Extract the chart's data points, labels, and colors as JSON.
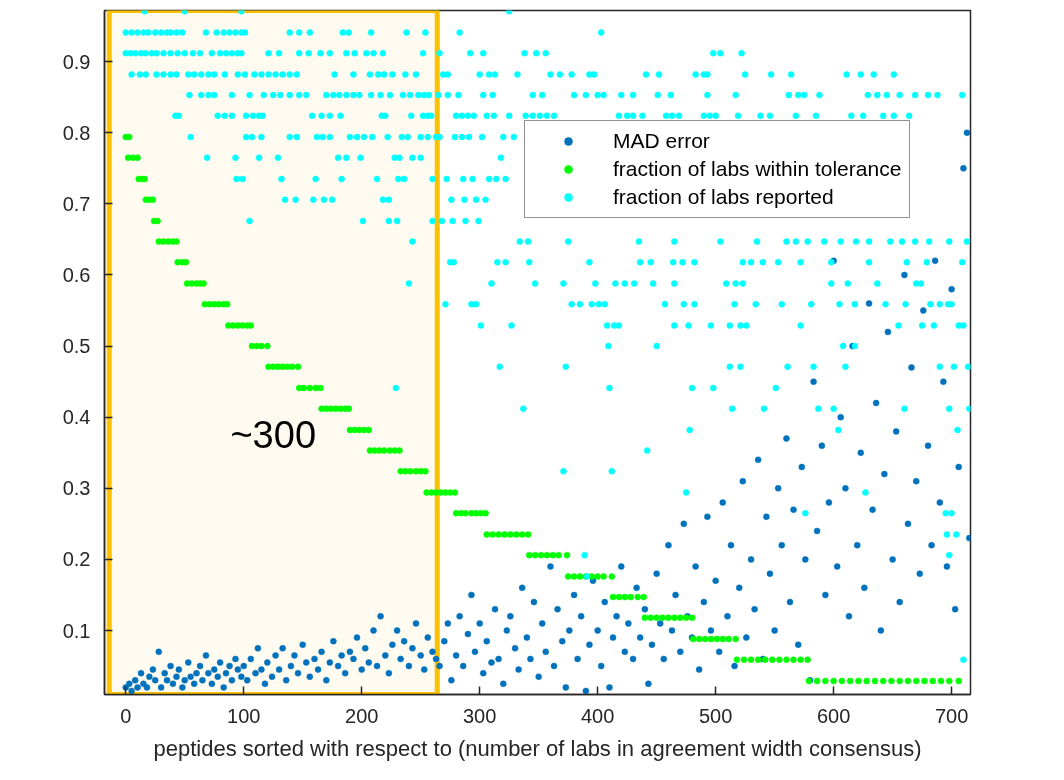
{
  "chart_data": {
    "type": "scatter",
    "xlabel": "peptides sorted with respect to (number of labs in agreement width consensus)",
    "xlim": [
      -18,
      716
    ],
    "ylim": [
      0.01,
      0.972
    ],
    "xticks": [
      0,
      100,
      200,
      300,
      400,
      500,
      600,
      700
    ],
    "yticks": [
      0.1,
      0.2,
      0.3,
      0.4,
      0.5,
      0.6,
      0.7,
      0.8,
      0.9
    ],
    "grid": false,
    "legend": "top right",
    "marker": "circle",
    "bands": [
      {
        "axis": "x",
        "from": -14,
        "to": 264,
        "label": "~300",
        "color": "#ffc000"
      }
    ],
    "series": [
      {
        "name": "MAD error",
        "color": "#0072bd",
        "x": [
          0,
          3,
          5,
          8,
          10,
          13,
          15,
          18,
          20,
          23,
          25,
          28,
          30,
          33,
          35,
          38,
          40,
          43,
          45,
          48,
          50,
          53,
          55,
          58,
          60,
          63,
          65,
          68,
          70,
          73,
          75,
          78,
          80,
          83,
          85,
          88,
          90,
          93,
          95,
          98,
          100,
          103,
          106,
          110,
          112,
          115,
          118,
          120,
          124,
          127,
          130,
          133,
          136,
          140,
          143,
          146,
          150,
          153,
          156,
          160,
          163,
          166,
          170,
          173,
          176,
          180,
          183,
          186,
          190,
          193,
          196,
          200,
          203,
          206,
          210,
          213,
          216,
          220,
          223,
          226,
          230,
          233,
          236,
          240,
          243,
          246,
          250,
          253,
          256,
          260,
          263,
          266,
          270,
          273,
          276,
          280,
          283,
          286,
          290,
          293,
          296,
          300,
          303,
          306,
          310,
          313,
          316,
          320,
          323,
          326,
          330,
          333,
          336,
          340,
          343,
          346,
          350,
          353,
          356,
          360,
          363,
          366,
          370,
          373,
          376,
          380,
          383,
          386,
          390,
          393,
          396,
          400,
          403,
          406,
          410,
          413,
          416,
          420,
          423,
          426,
          430,
          433,
          436,
          440,
          443,
          446,
          450,
          453,
          456,
          460,
          463,
          466,
          470,
          473,
          476,
          480,
          483,
          486,
          490,
          493,
          496,
          500,
          503,
          506,
          510,
          513,
          516,
          520,
          523,
          526,
          530,
          533,
          536,
          540,
          543,
          546,
          550,
          553,
          556,
          560,
          563,
          566,
          570,
          573,
          576,
          580,
          583,
          586,
          590,
          593,
          596,
          600,
          603,
          606,
          610,
          613,
          616,
          620,
          623,
          626,
          630,
          633,
          636,
          640,
          643,
          646,
          650,
          653,
          656,
          660,
          663,
          666,
          670,
          673,
          676,
          680,
          683,
          686,
          690,
          693,
          696,
          700,
          703,
          706,
          710,
          713,
          715
        ],
        "values": [
          0.02,
          0.025,
          0.015,
          0.03,
          0.02,
          0.04,
          0.025,
          0.02,
          0.035,
          0.045,
          0.03,
          0.07,
          0.02,
          0.04,
          0.03,
          0.05,
          0.025,
          0.035,
          0.045,
          0.02,
          0.03,
          0.055,
          0.035,
          0.025,
          0.04,
          0.05,
          0.03,
          0.065,
          0.04,
          0.025,
          0.045,
          0.035,
          0.055,
          0.02,
          0.04,
          0.05,
          0.03,
          0.06,
          0.045,
          0.035,
          0.05,
          0.03,
          0.06,
          0.04,
          0.075,
          0.045,
          0.025,
          0.055,
          0.035,
          0.065,
          0.045,
          0.075,
          0.03,
          0.05,
          0.065,
          0.04,
          0.08,
          0.055,
          0.035,
          0.06,
          0.045,
          0.07,
          0.03,
          0.055,
          0.085,
          0.05,
          0.065,
          0.04,
          0.07,
          0.06,
          0.09,
          0.045,
          0.075,
          0.055,
          0.1,
          0.05,
          0.12,
          0.065,
          0.04,
          0.08,
          0.1,
          0.06,
          0.085,
          0.05,
          0.075,
          0.11,
          0.065,
          0.045,
          0.09,
          0.07,
          0.06,
          0.05,
          0.085,
          0.11,
          0.03,
          0.065,
          0.12,
          0.05,
          0.095,
          0.15,
          0.07,
          0.11,
          0.04,
          0.085,
          0.055,
          0.13,
          0.06,
          0.025,
          0.1,
          0.12,
          0.075,
          0.045,
          0.16,
          0.09,
          0.06,
          0.14,
          0.035,
          0.11,
          0.07,
          0.19,
          0.05,
          0.13,
          0.085,
          0.02,
          0.1,
          0.15,
          0.06,
          0.12,
          0.015,
          0.08,
          0.17,
          0.1,
          0.05,
          0.14,
          0.02,
          0.09,
          0.12,
          0.19,
          0.07,
          0.11,
          0.06,
          0.16,
          0.09,
          0.13,
          0.025,
          0.08,
          0.18,
          0.11,
          0.06,
          0.22,
          0.1,
          0.15,
          0.07,
          0.25,
          0.12,
          0.09,
          0.19,
          0.045,
          0.14,
          0.26,
          0.1,
          0.17,
          0.07,
          0.28,
          0.12,
          0.22,
          0.05,
          0.16,
          0.31,
          0.09,
          0.2,
          0.13,
          0.34,
          0.06,
          0.26,
          0.18,
          0.1,
          0.3,
          0.22,
          0.37,
          0.14,
          0.27,
          0.08,
          0.33,
          0.2,
          0.03,
          0.45,
          0.24,
          0.36,
          0.15,
          0.28,
          0.62,
          0.19,
          0.4,
          0.3,
          0.12,
          0.5,
          0.22,
          0.35,
          0.16,
          0.56,
          0.27,
          0.42,
          0.1,
          0.32,
          0.52,
          0.2,
          0.38,
          0.14,
          0.6,
          0.25,
          0.47,
          0.31,
          0.18,
          0.55,
          0.36,
          0.22,
          0.62,
          0.28,
          0.45,
          0.19,
          0.58,
          0.13,
          0.33,
          0.75,
          0.8,
          0.23
        ]
      },
      {
        "name": "fraction of labs within tolerance",
        "color": "#00ff00",
        "x": [
          0,
          3,
          2,
          6,
          10,
          11,
          14,
          16,
          17,
          20,
          23,
          24,
          27,
          28,
          32,
          36,
          40,
          43,
          44,
          48,
          51,
          52,
          56,
          60,
          63,
          66,
          67,
          71,
          75,
          79,
          83,
          86,
          87,
          91,
          95,
          99,
          103,
          106,
          107,
          111,
          115,
          120,
          121,
          125,
          129,
          133,
          137,
          141,
          146,
          147,
          151,
          156,
          161,
          165,
          166,
          170,
          174,
          178,
          182,
          186,
          189,
          190,
          194,
          198,
          202,
          206,
          207,
          211,
          215,
          219,
          224,
          228,
          232,
          233,
          237,
          241,
          246,
          250,
          254,
          255,
          259,
          263,
          267,
          271,
          275,
          279,
          280,
          284,
          288,
          293,
          297,
          301,
          305,
          306,
          311,
          316,
          321,
          326,
          331,
          336,
          341,
          342,
          347,
          352,
          357,
          362,
          367,
          374,
          375,
          380,
          385,
          390,
          395,
          400,
          405,
          412,
          413,
          418,
          423,
          428,
          434,
          439,
          440,
          445,
          450,
          455,
          460,
          465,
          470,
          475,
          480,
          481,
          486,
          491,
          496,
          501,
          506,
          511,
          517,
          518,
          524,
          530,
          536,
          542,
          548,
          554,
          560,
          566,
          572,
          578,
          579,
          586,
          593,
          600,
          607,
          614,
          621,
          628,
          635,
          642,
          649,
          656,
          663,
          670,
          677,
          684,
          691,
          698,
          706
        ],
        "values": [
          0.794,
          0.794,
          0.765,
          0.765,
          0.765,
          0.735,
          0.735,
          0.735,
          0.706,
          0.706,
          0.706,
          0.676,
          0.676,
          0.647,
          0.647,
          0.647,
          0.647,
          0.647,
          0.618,
          0.618,
          0.618,
          0.588,
          0.588,
          0.588,
          0.588,
          0.588,
          0.559,
          0.559,
          0.559,
          0.559,
          0.559,
          0.559,
          0.529,
          0.529,
          0.529,
          0.529,
          0.529,
          0.529,
          0.5,
          0.5,
          0.5,
          0.5,
          0.471,
          0.471,
          0.471,
          0.471,
          0.471,
          0.471,
          0.471,
          0.441,
          0.441,
          0.441,
          0.441,
          0.441,
          0.412,
          0.412,
          0.412,
          0.412,
          0.412,
          0.412,
          0.412,
          0.382,
          0.382,
          0.382,
          0.382,
          0.382,
          0.353,
          0.353,
          0.353,
          0.353,
          0.353,
          0.353,
          0.353,
          0.324,
          0.324,
          0.324,
          0.324,
          0.324,
          0.324,
          0.294,
          0.294,
          0.294,
          0.294,
          0.294,
          0.294,
          0.294,
          0.265,
          0.265,
          0.265,
          0.265,
          0.265,
          0.265,
          0.265,
          0.235,
          0.235,
          0.235,
          0.235,
          0.235,
          0.235,
          0.235,
          0.235,
          0.206,
          0.206,
          0.206,
          0.206,
          0.206,
          0.206,
          0.206,
          0.176,
          0.176,
          0.176,
          0.176,
          0.176,
          0.176,
          0.176,
          0.176,
          0.147,
          0.147,
          0.147,
          0.147,
          0.147,
          0.147,
          0.118,
          0.118,
          0.118,
          0.118,
          0.118,
          0.118,
          0.118,
          0.118,
          0.118,
          0.088,
          0.088,
          0.088,
          0.088,
          0.088,
          0.088,
          0.088,
          0.088,
          0.059,
          0.059,
          0.059,
          0.059,
          0.059,
          0.059,
          0.059,
          0.059,
          0.059,
          0.059,
          0.059,
          0.029,
          0.029,
          0.029,
          0.029,
          0.029,
          0.029,
          0.029,
          0.029,
          0.029,
          0.029,
          0.029,
          0.029,
          0.029,
          0.029,
          0.029,
          0.029,
          0.029,
          0.029,
          0.029
        ]
      },
      {
        "name": "fraction of labs reported",
        "color": "#00ffff",
        "x": [
          16,
          50,
          98,
          325,
          0,
          5,
          10,
          15,
          19,
          25,
          30,
          35,
          38,
          43,
          48,
          68,
          77,
          83,
          88,
          93,
          98,
          101,
          139,
          147,
          156,
          184,
          189,
          208,
          238,
          254,
          283,
          403,
          0,
          4,
          8,
          13,
          17,
          22,
          26,
          32,
          38,
          44,
          50,
          57,
          63,
          73,
          80,
          85,
          90,
          95,
          98,
          121,
          130,
          147,
          155,
          165,
          173,
          187,
          194,
          204,
          210,
          218,
          252,
          266,
          292,
          303,
          338,
          348,
          356,
          498,
          504,
          522,
          5,
          12,
          17,
          26,
          32,
          38,
          43,
          53,
          58,
          64,
          70,
          75,
          84,
          95,
          101,
          109,
          115,
          121,
          127,
          133,
          139,
          145,
          177,
          193,
          207,
          214,
          219,
          226,
          237,
          246,
          269,
          273,
          300,
          308,
          313,
          332,
          360,
          368,
          378,
          393,
          397,
          441,
          452,
          483,
          490,
          493,
          525,
          547,
          564,
          611,
          623,
          634,
          651,
          54,
          64,
          70,
          75,
          90,
          105,
          117,
          125,
          131,
          139,
          147,
          153,
          170,
          176,
          181,
          187,
          193,
          198,
          208,
          216,
          224,
          235,
          241,
          248,
          253,
          257,
          265,
          273,
          282,
          303,
          311,
          345,
          353,
          380,
          390,
          400,
          405,
          420,
          430,
          451,
          462,
          493,
          517,
          562,
          570,
          575,
          588,
          629,
          637,
          645,
          656,
          669,
          680,
          688,
          709,
          42,
          45,
          78,
          84,
          90,
          102,
          108,
          113,
          116,
          158,
          166,
          173,
          182,
          217,
          220,
          242,
          252,
          256,
          259,
          280,
          285,
          290,
          295,
          306,
          312,
          325,
          339,
          345,
          351,
          357,
          363,
          418,
          425,
          430,
          438,
          458,
          463,
          469,
          490,
          495,
          500,
          519,
          538,
          546,
          568,
          585,
          615,
          625,
          642,
          651,
          664,
          55,
          102,
          107,
          115,
          139,
          145,
          162,
          167,
          173,
          190,
          196,
          202,
          209,
          222,
          234,
          239,
          250,
          256,
          263,
          266,
          279,
          285,
          291,
          302,
          320,
          329,
          69,
          93,
          113,
          129,
          180,
          187,
          199,
          228,
          232,
          243,
          250,
          318,
          94,
          99,
          132,
          161,
          183,
          213,
          231,
          236,
          260,
          272,
          286,
          294,
          308,
          314,
          322,
          135,
          144,
          159,
          168,
          175,
          218,
          223,
          276,
          287,
          297,
          305,
          105,
          201,
          223,
          230,
          260,
          268,
          277,
          288,
          299,
          243,
          334,
          341,
          375,
          435,
          465,
          504,
          535,
          560,
          568,
          578,
          592,
          606,
          619,
          630,
          648,
          658,
          669,
          681,
          698,
          713,
          275,
          278,
          315,
          322,
          342,
          393,
          436,
          445,
          464,
          472,
          482,
          523,
          530,
          540,
          553,
          572,
          598,
          630,
          662,
          679,
          709,
          240,
          310,
          347,
          371,
          398,
          415,
          423,
          431,
          447,
          465,
          509,
          517,
          523,
          598,
          612,
          637,
          670,
          674,
          271,
          293,
          297,
          378,
          385,
          395,
          401,
          406,
          457,
          473,
          482,
          516,
          534,
          556,
          581,
          605,
          618,
          644,
          661,
          682,
          690,
          697,
          700,
          301,
          327,
          408,
          414,
          418,
          465,
          477,
          496,
          512,
          521,
          526,
          572,
          655,
          675,
          685,
          706,
          710,
          409,
          450,
          608,
          618,
          317,
          373,
          512,
          521,
          561,
          583,
          610,
          690,
          702,
          714,
          229,
          410,
          480,
          498,
          551,
          337,
          514,
          541,
          587,
          600,
          660,
          698,
          715,
          478,
          604,
          705,
          442,
          371,
          412,
          475,
          627,
          576,
          695,
          700,
          696,
          704,
          389,
          698,
          391,
          710
        ],
        "values": [
          0.971,
          0.971,
          0.971,
          0.971,
          0.941,
          0.941,
          0.941,
          0.941,
          0.941,
          0.941,
          0.941,
          0.941,
          0.941,
          0.941,
          0.941,
          0.941,
          0.941,
          0.941,
          0.941,
          0.941,
          0.941,
          0.941,
          0.941,
          0.941,
          0.941,
          0.941,
          0.941,
          0.941,
          0.941,
          0.941,
          0.941,
          0.941,
          0.912,
          0.912,
          0.912,
          0.912,
          0.912,
          0.912,
          0.912,
          0.912,
          0.912,
          0.912,
          0.912,
          0.912,
          0.912,
          0.912,
          0.912,
          0.912,
          0.912,
          0.912,
          0.912,
          0.912,
          0.912,
          0.912,
          0.912,
          0.912,
          0.912,
          0.912,
          0.912,
          0.912,
          0.912,
          0.912,
          0.912,
          0.912,
          0.912,
          0.912,
          0.912,
          0.912,
          0.912,
          0.912,
          0.912,
          0.912,
          0.882,
          0.882,
          0.882,
          0.882,
          0.882,
          0.882,
          0.882,
          0.882,
          0.882,
          0.882,
          0.882,
          0.882,
          0.882,
          0.882,
          0.882,
          0.882,
          0.882,
          0.882,
          0.882,
          0.882,
          0.882,
          0.882,
          0.882,
          0.882,
          0.882,
          0.882,
          0.882,
          0.882,
          0.882,
          0.882,
          0.882,
          0.882,
          0.882,
          0.882,
          0.882,
          0.882,
          0.882,
          0.882,
          0.882,
          0.882,
          0.882,
          0.882,
          0.882,
          0.882,
          0.882,
          0.882,
          0.882,
          0.882,
          0.882,
          0.882,
          0.882,
          0.882,
          0.882,
          0.853,
          0.853,
          0.853,
          0.853,
          0.853,
          0.853,
          0.853,
          0.853,
          0.853,
          0.853,
          0.853,
          0.853,
          0.853,
          0.853,
          0.853,
          0.853,
          0.853,
          0.853,
          0.853,
          0.853,
          0.853,
          0.853,
          0.853,
          0.853,
          0.853,
          0.853,
          0.853,
          0.853,
          0.853,
          0.853,
          0.853,
          0.853,
          0.853,
          0.853,
          0.853,
          0.853,
          0.853,
          0.853,
          0.853,
          0.853,
          0.853,
          0.853,
          0.853,
          0.853,
          0.853,
          0.853,
          0.853,
          0.853,
          0.853,
          0.853,
          0.853,
          0.853,
          0.853,
          0.853,
          0.853,
          0.824,
          0.824,
          0.824,
          0.824,
          0.824,
          0.824,
          0.824,
          0.824,
          0.824,
          0.824,
          0.824,
          0.824,
          0.824,
          0.824,
          0.824,
          0.824,
          0.824,
          0.824,
          0.824,
          0.824,
          0.824,
          0.824,
          0.824,
          0.824,
          0.824,
          0.824,
          0.824,
          0.824,
          0.824,
          0.824,
          0.824,
          0.824,
          0.824,
          0.824,
          0.824,
          0.824,
          0.824,
          0.824,
          0.824,
          0.824,
          0.824,
          0.824,
          0.824,
          0.824,
          0.824,
          0.824,
          0.824,
          0.824,
          0.824,
          0.824,
          0.824,
          0.794,
          0.794,
          0.794,
          0.794,
          0.794,
          0.794,
          0.794,
          0.794,
          0.794,
          0.794,
          0.794,
          0.794,
          0.794,
          0.794,
          0.794,
          0.794,
          0.794,
          0.794,
          0.794,
          0.794,
          0.794,
          0.794,
          0.794,
          0.794,
          0.794,
          0.794,
          0.765,
          0.765,
          0.765,
          0.765,
          0.765,
          0.765,
          0.765,
          0.765,
          0.765,
          0.765,
          0.765,
          0.765,
          0.735,
          0.735,
          0.735,
          0.735,
          0.735,
          0.735,
          0.735,
          0.735,
          0.735,
          0.735,
          0.735,
          0.735,
          0.735,
          0.735,
          0.735,
          0.706,
          0.706,
          0.706,
          0.706,
          0.706,
          0.706,
          0.706,
          0.706,
          0.706,
          0.706,
          0.706,
          0.676,
          0.676,
          0.676,
          0.676,
          0.676,
          0.676,
          0.676,
          0.676,
          0.676,
          0.647,
          0.647,
          0.647,
          0.647,
          0.647,
          0.647,
          0.647,
          0.647,
          0.647,
          0.647,
          0.647,
          0.647,
          0.647,
          0.647,
          0.647,
          0.647,
          0.647,
          0.647,
          0.647,
          0.647,
          0.647,
          0.618,
          0.618,
          0.618,
          0.618,
          0.618,
          0.618,
          0.618,
          0.618,
          0.618,
          0.618,
          0.618,
          0.618,
          0.618,
          0.618,
          0.618,
          0.618,
          0.618,
          0.618,
          0.618,
          0.618,
          0.618,
          0.588,
          0.588,
          0.588,
          0.588,
          0.588,
          0.588,
          0.588,
          0.588,
          0.588,
          0.588,
          0.588,
          0.588,
          0.588,
          0.588,
          0.588,
          0.588,
          0.588,
          0.588,
          0.559,
          0.559,
          0.559,
          0.559,
          0.559,
          0.559,
          0.559,
          0.559,
          0.559,
          0.559,
          0.559,
          0.559,
          0.559,
          0.559,
          0.559,
          0.559,
          0.559,
          0.559,
          0.559,
          0.559,
          0.559,
          0.559,
          0.559,
          0.529,
          0.529,
          0.529,
          0.529,
          0.529,
          0.529,
          0.529,
          0.529,
          0.529,
          0.529,
          0.529,
          0.529,
          0.529,
          0.529,
          0.529,
          0.529,
          0.529,
          0.5,
          0.5,
          0.5,
          0.5,
          0.471,
          0.471,
          0.471,
          0.471,
          0.471,
          0.471,
          0.471,
          0.471,
          0.471,
          0.471,
          0.441,
          0.441,
          0.441,
          0.441,
          0.441,
          0.412,
          0.412,
          0.412,
          0.412,
          0.412,
          0.412,
          0.412,
          0.412,
          0.382,
          0.382,
          0.382,
          0.353,
          0.324,
          0.324,
          0.294,
          0.294,
          0.265,
          0.265,
          0.265,
          0.235,
          0.235,
          0.206,
          0.206,
          0.176,
          0.059
        ]
      }
    ]
  }
}
